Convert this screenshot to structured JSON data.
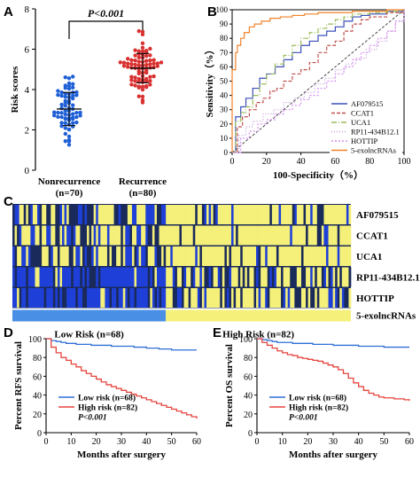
{
  "chart_data": [
    {
      "panel": "A",
      "type": "scatter",
      "ylabel": "Risk scores",
      "ylim": [
        0,
        8
      ],
      "yticks": [
        "0",
        "2",
        "4",
        "6",
        "8"
      ],
      "groups": [
        {
          "label_line1": "Nonrecurrence",
          "label_line2": "(n=70)",
          "n": 70,
          "mean": 3.0,
          "sd": 0.8,
          "min": 1.0,
          "max": 4.8,
          "color": "#1f5fd6"
        },
        {
          "label_line1": "Recurrence",
          "label_line2": "(n=80)",
          "n": 80,
          "mean": 5.0,
          "sd": 0.75,
          "min": 2.9,
          "max": 6.9,
          "color": "#d93030"
        }
      ],
      "annotation": "P<0.001"
    },
    {
      "panel": "B",
      "type": "line",
      "xlabel": "100-Specificity（%）",
      "ylabel": "Sensitivity（%）",
      "xlim": [
        0,
        100
      ],
      "ylim": [
        0,
        100
      ],
      "xticks": [
        "0",
        "20",
        "40",
        "60",
        "80",
        "100"
      ],
      "yticks": [
        "0",
        "10",
        "20",
        "30",
        "40",
        "50",
        "60",
        "70",
        "80",
        "90",
        "100"
      ],
      "series": [
        {
          "name": "AF079515",
          "color": "#3a4fb8",
          "dash": "",
          "x": [
            0,
            2,
            5,
            8,
            12,
            16,
            20,
            25,
            30,
            35,
            40,
            45,
            50,
            55,
            60,
            65,
            70,
            75,
            80,
            90,
            100
          ],
          "y": [
            0,
            25,
            32,
            38,
            45,
            52,
            55,
            60,
            65,
            70,
            75,
            78,
            82,
            85,
            88,
            92,
            95,
            96,
            97,
            99,
            100
          ]
        },
        {
          "name": "CCAT1",
          "color": "#c0504d",
          "dash": "4,2",
          "x": [
            0,
            3,
            6,
            10,
            14,
            18,
            22,
            26,
            30,
            35,
            40,
            45,
            50,
            55,
            60,
            65,
            70,
            75,
            80,
            90,
            100
          ],
          "y": [
            0,
            18,
            25,
            30,
            35,
            38,
            43,
            45,
            50,
            55,
            58,
            63,
            70,
            75,
            78,
            85,
            90,
            93,
            95,
            98,
            100
          ]
        },
        {
          "name": "UCA1",
          "color": "#9bbb59",
          "dash": "6,2,1,2",
          "x": [
            0,
            2,
            5,
            8,
            12,
            16,
            20,
            25,
            30,
            35,
            40,
            45,
            50,
            55,
            60,
            65,
            70,
            80,
            90,
            100
          ],
          "y": [
            0,
            22,
            28,
            32,
            40,
            48,
            55,
            62,
            68,
            75,
            80,
            84,
            87,
            90,
            93,
            95,
            97,
            98,
            99,
            100
          ]
        },
        {
          "name": "RP11-434B12.1",
          "color": "#c69ad8",
          "dash": "1,2",
          "x": [
            0,
            4,
            8,
            12,
            18,
            24,
            30,
            36,
            42,
            48,
            54,
            60,
            66,
            72,
            78,
            84,
            90,
            95,
            100
          ],
          "y": [
            0,
            12,
            18,
            22,
            27,
            30,
            35,
            38,
            42,
            48,
            52,
            58,
            62,
            66,
            72,
            78,
            85,
            92,
            100
          ]
        },
        {
          "name": "HOTTIP",
          "color": "#d58ff0",
          "dash": "2,2",
          "x": [
            0,
            5,
            10,
            15,
            20,
            25,
            30,
            35,
            40,
            45,
            50,
            55,
            60,
            65,
            70,
            75,
            80,
            85,
            90,
            95,
            100
          ],
          "y": [
            0,
            10,
            15,
            20,
            23,
            27,
            30,
            33,
            37,
            40,
            45,
            50,
            55,
            60,
            65,
            70,
            75,
            80,
            85,
            92,
            100
          ]
        },
        {
          "name": "5-exolncRNAs",
          "color": "#f0822a",
          "dash": "",
          "x": [
            0,
            0,
            2,
            3,
            5,
            7,
            10,
            13,
            17,
            22,
            28,
            35,
            42,
            50,
            60,
            70,
            80,
            90,
            100
          ],
          "y": [
            0,
            58,
            70,
            75,
            80,
            84,
            88,
            90,
            92,
            94,
            95,
            96,
            97,
            98,
            98,
            99,
            99,
            100,
            100
          ]
        }
      ],
      "diagonal": true
    },
    {
      "panel": "C",
      "type": "heatmap",
      "rows": [
        "AF079515",
        "CCAT1",
        "UCA1",
        "RP11-434B12.1",
        "HOTTIP",
        "5-exolncRNAs"
      ],
      "groups": [
        {
          "label": "Low Risk (n=68)",
          "n": 68,
          "color": "#4a8fe6"
        },
        {
          "label": "High Risk (n=82)",
          "n": 82,
          "color": "#f4f07a"
        }
      ],
      "colors": {
        "high": "#f4f07a",
        "mid": "#1a2a5a",
        "low": "#1e40d8"
      }
    },
    {
      "panel": "D",
      "type": "line",
      "xlabel": "Months after surgery",
      "ylabel": "Percent RFS survival",
      "xlim": [
        0,
        60
      ],
      "ylim": [
        0,
        100
      ],
      "xticks": [
        "0",
        "10",
        "20",
        "30",
        "40",
        "50",
        "60"
      ],
      "yticks": [
        "0",
        "20",
        "40",
        "60",
        "80",
        "100"
      ],
      "series": [
        {
          "name": "Low risk (n=68)",
          "color": "#2f6fd6",
          "x": [
            0,
            2,
            4,
            6,
            8,
            10,
            12,
            15,
            18,
            22,
            26,
            30,
            35,
            40,
            45,
            50,
            55,
            60
          ],
          "y": [
            100,
            98,
            97,
            96,
            95,
            95,
            94,
            94,
            93,
            93,
            92,
            92,
            91,
            90,
            89,
            88,
            88,
            88
          ]
        },
        {
          "name": "High risk (n=82)",
          "color": "#e5453e",
          "x": [
            0,
            2,
            4,
            6,
            8,
            10,
            12,
            14,
            16,
            18,
            20,
            22,
            24,
            26,
            28,
            30,
            32,
            34,
            36,
            38,
            40,
            42,
            44,
            46,
            48,
            50,
            52,
            54,
            56,
            58,
            60
          ],
          "y": [
            100,
            91,
            85,
            80,
            77,
            73,
            70,
            66,
            63,
            60,
            57,
            54,
            51,
            49,
            47,
            45,
            43,
            41,
            39,
            37,
            35,
            33,
            31,
            29,
            27,
            25,
            23,
            21,
            19,
            17,
            15
          ]
        }
      ],
      "pvalue": "P<0.001"
    },
    {
      "panel": "E",
      "type": "line",
      "xlabel": "Months after surgery",
      "ylabel": "Percent OS survival",
      "xlim": [
        0,
        60
      ],
      "ylim": [
        0,
        100
      ],
      "xticks": [
        "0",
        "10",
        "20",
        "30",
        "40",
        "50",
        "60"
      ],
      "yticks": [
        "0",
        "20",
        "40",
        "60",
        "80",
        "100"
      ],
      "series": [
        {
          "name": "Low risk (n=68)",
          "color": "#2f6fd6",
          "x": [
            0,
            2,
            4,
            6,
            8,
            10,
            14,
            18,
            22,
            26,
            30,
            35,
            40,
            45,
            50,
            55,
            60
          ],
          "y": [
            100,
            99,
            98,
            97,
            96,
            96,
            95,
            95,
            94,
            94,
            93,
            93,
            92,
            92,
            91,
            91,
            91
          ]
        },
        {
          "name": "High risk (n=82)",
          "color": "#e5453e",
          "x": [
            0,
            2,
            4,
            6,
            8,
            10,
            12,
            14,
            16,
            18,
            20,
            22,
            24,
            26,
            28,
            30,
            32,
            34,
            36,
            38,
            40,
            42,
            44,
            46,
            48,
            50,
            52,
            54,
            56,
            58,
            60
          ],
          "y": [
            100,
            96,
            93,
            90,
            87,
            85,
            83,
            82,
            80,
            79,
            78,
            77,
            76,
            74,
            72,
            70,
            67,
            63,
            58,
            53,
            49,
            45,
            42,
            40,
            38,
            37,
            37,
            36,
            36,
            35,
            34
          ]
        }
      ],
      "pvalue": "P<0.001"
    }
  ]
}
